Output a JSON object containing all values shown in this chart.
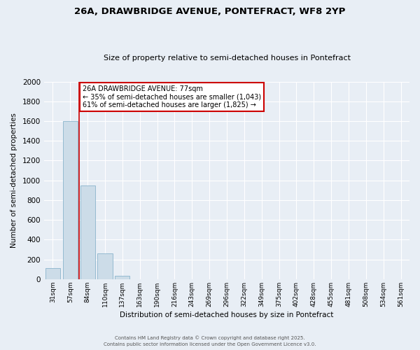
{
  "title1": "26A, DRAWBRIDGE AVENUE, PONTEFRACT, WF8 2YP",
  "title2": "Size of property relative to semi-detached houses in Pontefract",
  "xlabel": "Distribution of semi-detached houses by size in Pontefract",
  "ylabel": "Number of semi-detached properties",
  "bin_labels": [
    "31sqm",
    "57sqm",
    "84sqm",
    "110sqm",
    "137sqm",
    "163sqm",
    "190sqm",
    "216sqm",
    "243sqm",
    "269sqm",
    "296sqm",
    "322sqm",
    "349sqm",
    "375sqm",
    "402sqm",
    "428sqm",
    "455sqm",
    "481sqm",
    "508sqm",
    "534sqm",
    "561sqm"
  ],
  "bar_values": [
    110,
    1600,
    950,
    260,
    35,
    0,
    0,
    0,
    0,
    0,
    0,
    0,
    0,
    0,
    0,
    0,
    0,
    0,
    0,
    0,
    0
  ],
  "bar_color": "#ccdce8",
  "bar_edge_color": "#8ab4cc",
  "ylim": [
    0,
    2000
  ],
  "yticks": [
    0,
    200,
    400,
    600,
    800,
    1000,
    1200,
    1400,
    1600,
    1800,
    2000
  ],
  "property_line_x": 1.5,
  "annotation_title": "26A DRAWBRIDGE AVENUE: 77sqm",
  "annotation_line1": "← 35% of semi-detached houses are smaller (1,043)",
  "annotation_line2": "61% of semi-detached houses are larger (1,825) →",
  "annotation_box_color": "#ffffff",
  "annotation_box_edge": "#cc0000",
  "red_line_color": "#cc0000",
  "background_color": "#e8eef5",
  "grid_color": "#ffffff",
  "footer1": "Contains HM Land Registry data © Crown copyright and database right 2025.",
  "footer2": "Contains public sector information licensed under the Open Government Licence v3.0."
}
